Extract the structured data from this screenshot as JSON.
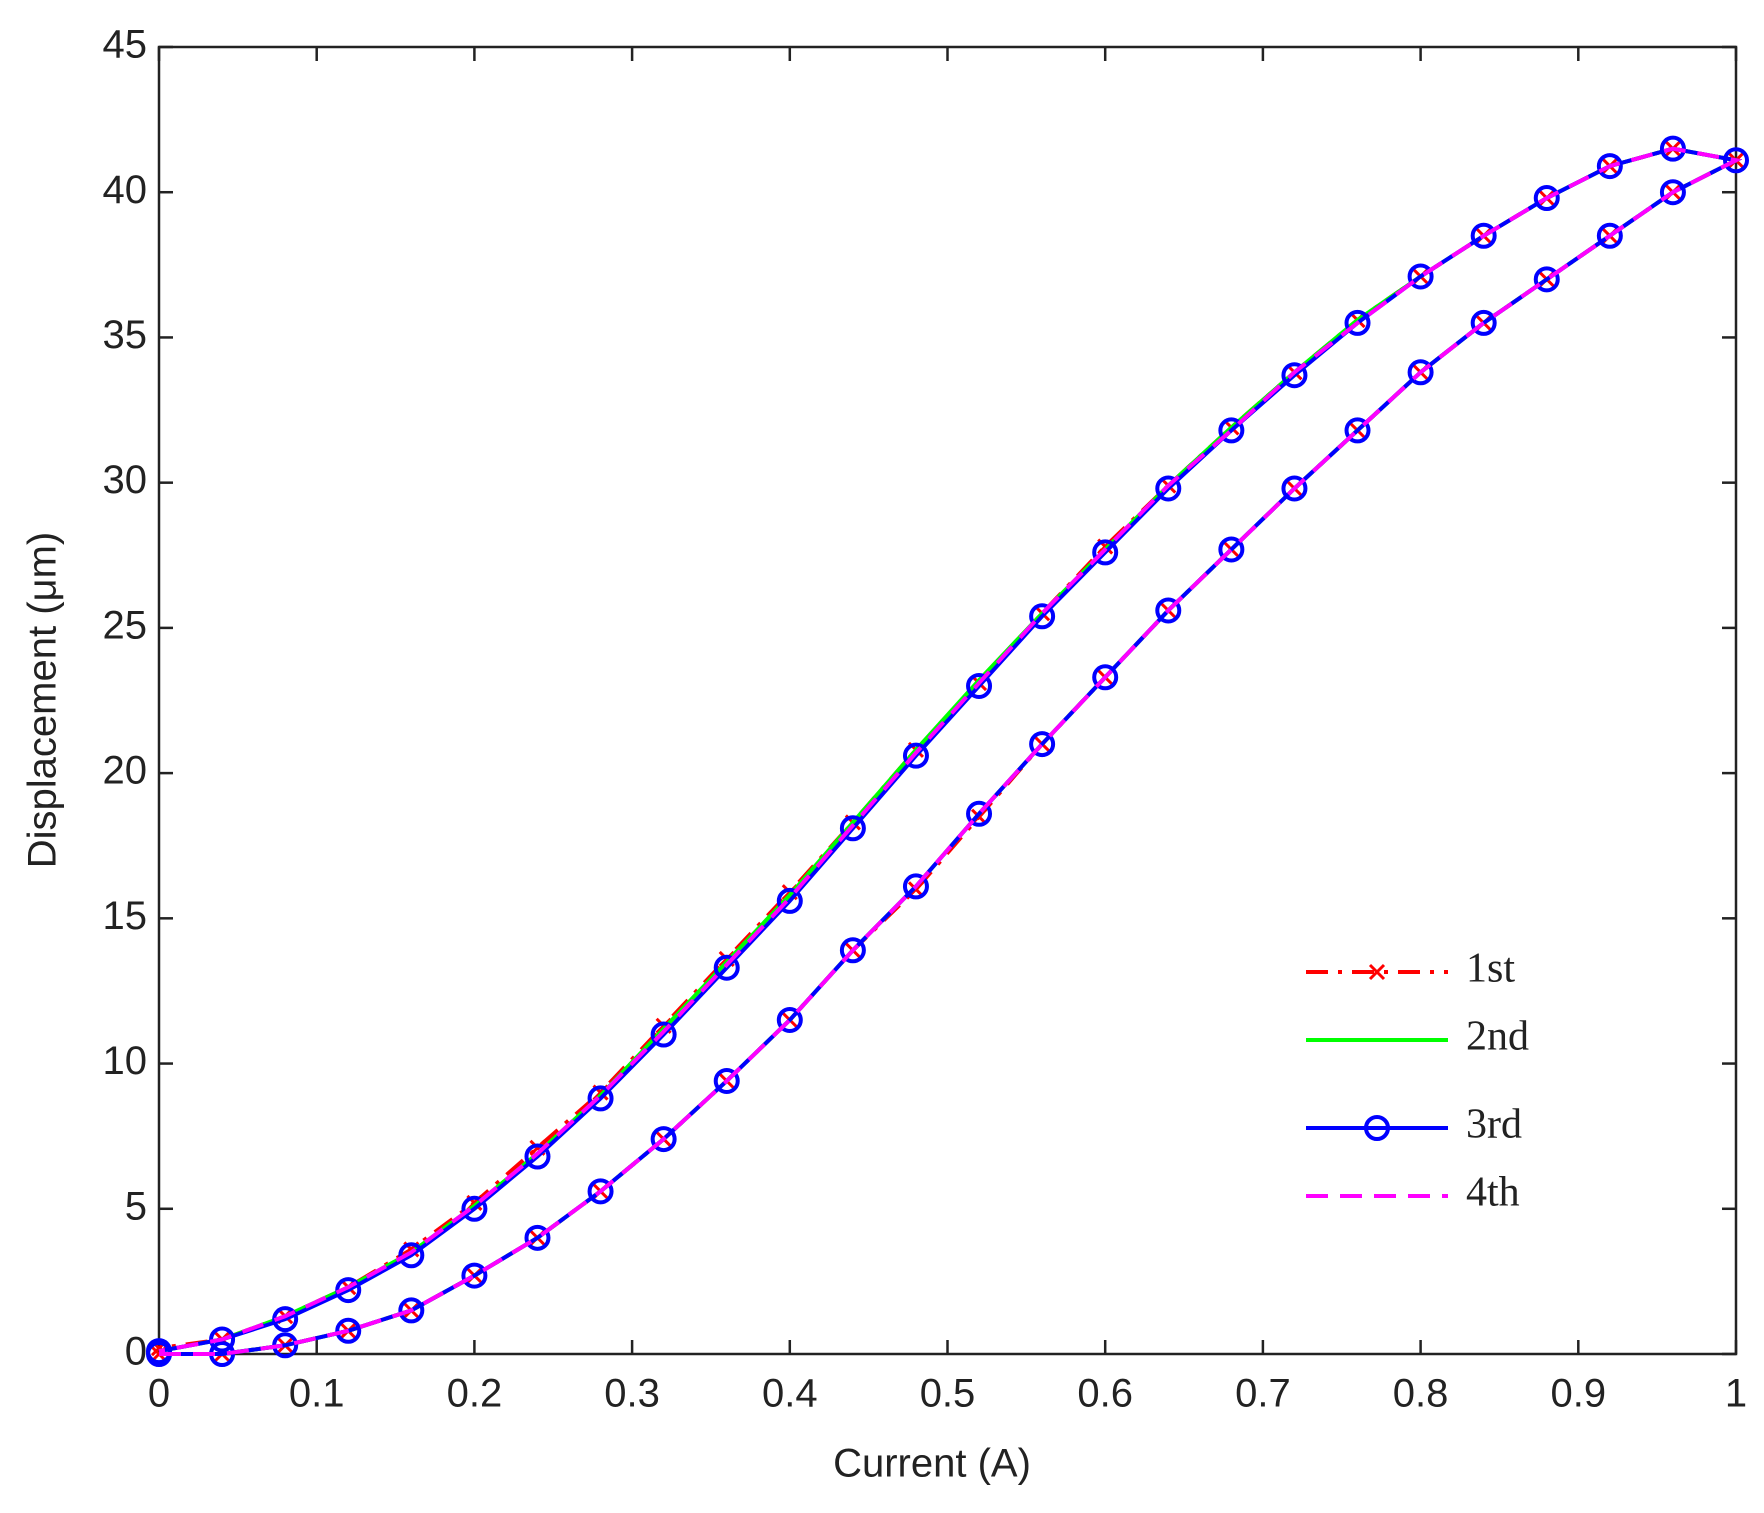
{
  "chart_data": {
    "type": "line",
    "x_label": "Current (A)",
    "y_label": "Displacement (μm)",
    "x": [
      0,
      0.04,
      0.08,
      0.12,
      0.16,
      0.2,
      0.24,
      0.28,
      0.32,
      0.36,
      0.4,
      0.44,
      0.48,
      0.52,
      0.56,
      0.6,
      0.64,
      0.68,
      0.72,
      0.76,
      0.8,
      0.84,
      0.88,
      0.92,
      0.96,
      1,
      0.96,
      0.92,
      0.88,
      0.84,
      0.8,
      0.76,
      0.72,
      0.68,
      0.64,
      0.6,
      0.56,
      0.52,
      0.48,
      0.44,
      0.4,
      0.36,
      0.32,
      0.28,
      0.24,
      0.2,
      0.16,
      0.12,
      0.08,
      0.04,
      0
    ],
    "series": [
      {
        "name": "1st",
        "color": "#ff0000",
        "linestyle": "-.",
        "marker": "x",
        "values": [
          0,
          0,
          0.3,
          0.8,
          1.5,
          2.7,
          4.0,
          5.6,
          7.4,
          9.4,
          11.5,
          13.9,
          16.0,
          18.5,
          21.0,
          23.3,
          25.6,
          27.7,
          29.8,
          31.8,
          33.8,
          35.5,
          37.0,
          38.5,
          40.0,
          41.1,
          41.5,
          40.9,
          39.8,
          38.5,
          37.1,
          35.6,
          33.8,
          31.9,
          29.9,
          27.8,
          25.5,
          23.1,
          20.8,
          18.3,
          15.9,
          13.6,
          11.3,
          9.0,
          7.1,
          5.2,
          3.6,
          2.3,
          1.3,
          0.5,
          0.2
        ]
      },
      {
        "name": "2nd",
        "color": "#00ff00",
        "linestyle": "-",
        "marker": null,
        "values": [
          0,
          0,
          0.3,
          0.8,
          1.5,
          2.7,
          4.0,
          5.6,
          7.4,
          9.4,
          11.5,
          13.9,
          16.1,
          18.6,
          21.0,
          23.3,
          25.6,
          27.7,
          29.8,
          31.8,
          33.8,
          35.5,
          37.0,
          38.5,
          40.0,
          41.1,
          41.5,
          40.9,
          39.8,
          38.5,
          37.1,
          35.6,
          33.8,
          31.9,
          29.9,
          27.7,
          25.5,
          23.2,
          20.8,
          18.3,
          15.8,
          13.5,
          11.2,
          8.9,
          6.9,
          5.1,
          3.5,
          2.3,
          1.3,
          0.5,
          0.1
        ]
      },
      {
        "name": "3rd",
        "color": "#0000ff",
        "linestyle": "-",
        "marker": "o",
        "values": [
          0,
          0,
          0.3,
          0.8,
          1.5,
          2.7,
          4.0,
          5.6,
          7.4,
          9.4,
          11.5,
          13.9,
          16.1,
          18.6,
          21.0,
          23.3,
          25.6,
          27.7,
          29.8,
          31.8,
          33.8,
          35.5,
          37.0,
          38.5,
          40.0,
          41.1,
          41.5,
          40.9,
          39.8,
          38.5,
          37.1,
          35.5,
          33.7,
          31.8,
          29.8,
          27.6,
          25.4,
          23.0,
          20.6,
          18.1,
          15.6,
          13.3,
          11.0,
          8.8,
          6.8,
          5.0,
          3.4,
          2.2,
          1.2,
          0.5,
          0.1
        ]
      },
      {
        "name": "4th",
        "color": "#ff00ff",
        "linestyle": "--",
        "marker": null,
        "values": [
          0,
          0,
          0.3,
          0.8,
          1.5,
          2.7,
          4.0,
          5.6,
          7.4,
          9.4,
          11.5,
          13.9,
          16.1,
          18.6,
          21.0,
          23.3,
          25.6,
          27.7,
          29.8,
          31.8,
          33.8,
          35.5,
          37.0,
          38.5,
          40.0,
          41.1,
          41.5,
          40.9,
          39.8,
          38.5,
          37.1,
          35.5,
          33.8,
          31.8,
          29.9,
          27.7,
          25.5,
          23.1,
          20.7,
          18.2,
          15.7,
          13.4,
          11.1,
          8.9,
          6.9,
          5.1,
          3.5,
          2.3,
          1.3,
          0.5,
          0.1
        ]
      }
    ],
    "xlim": [
      0,
      1
    ],
    "xticks": [
      0,
      0.1,
      0.2,
      0.3,
      0.4,
      0.5,
      0.6,
      0.7,
      0.8,
      0.9,
      1
    ],
    "ylim": [
      0,
      45
    ],
    "yticks": [
      0,
      5,
      10,
      15,
      20,
      25,
      30,
      35,
      40,
      45
    ],
    "grid": false,
    "legend": "lower right"
  }
}
